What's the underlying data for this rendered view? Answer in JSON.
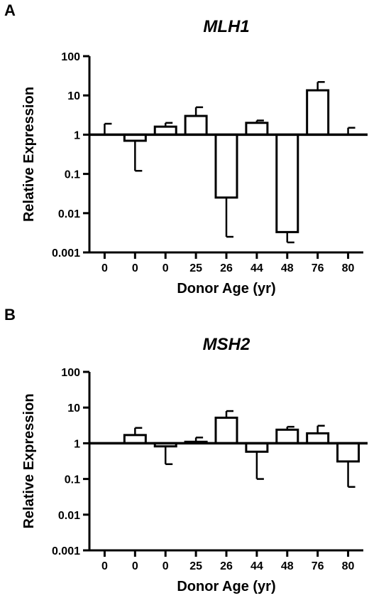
{
  "panels": [
    {
      "letter": "A"
    },
    {
      "letter": "B"
    }
  ],
  "chart_data": [
    {
      "type": "bar",
      "title": "MLH1",
      "xlabel": "Donor Age (yr)",
      "ylabel": "Relative Expression",
      "yscale": "log",
      "ylim": [
        0.001,
        100
      ],
      "baseline": 1,
      "yticks": [
        "0.001",
        "0.01",
        "0.1",
        "1",
        "10",
        "100"
      ],
      "categories": [
        "0",
        "0",
        "0",
        "25",
        "26",
        "44",
        "48",
        "76",
        "80"
      ],
      "values": [
        1.0,
        0.7,
        1.6,
        3.0,
        0.025,
        2.0,
        0.0033,
        13.5,
        1.05
      ],
      "error_upper": [
        1.9,
        0.12,
        2.0,
        5.0,
        0.0025,
        2.3,
        0.0018,
        22.0,
        1.5
      ]
    },
    {
      "type": "bar",
      "title": "MSH2",
      "xlabel": "Donor Age (yr)",
      "ylabel": "Relative Expression",
      "yscale": "log",
      "ylim": [
        0.001,
        100
      ],
      "baseline": 1,
      "yticks": [
        "0.001",
        "0.01",
        "0.1",
        "1",
        "10",
        "100"
      ],
      "categories": [
        "0",
        "0",
        "0",
        "25",
        "26",
        "44",
        "48",
        "76",
        "80"
      ],
      "values": [
        1.0,
        1.7,
        0.82,
        1.1,
        5.2,
        0.58,
        2.4,
        1.9,
        0.31
      ],
      "error_upper": [
        1.0,
        2.7,
        0.26,
        1.45,
        8.0,
        0.1,
        2.9,
        3.1,
        0.06
      ]
    }
  ]
}
